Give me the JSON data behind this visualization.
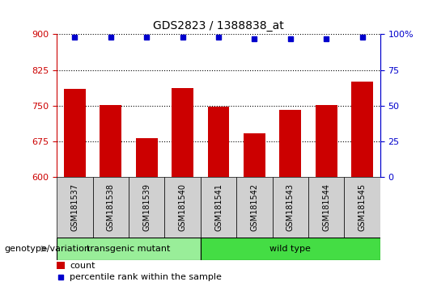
{
  "title": "GDS2823 / 1388838_at",
  "samples": [
    "GSM181537",
    "GSM181538",
    "GSM181539",
    "GSM181540",
    "GSM181541",
    "GSM181542",
    "GSM181543",
    "GSM181544",
    "GSM181545"
  ],
  "bar_values": [
    785,
    752,
    683,
    788,
    748,
    693,
    742,
    751,
    800
  ],
  "percentile_values": [
    98,
    98,
    98,
    98,
    98,
    97,
    97,
    97,
    98
  ],
  "bar_color": "#cc0000",
  "dot_color": "#0000cc",
  "ylim_left": [
    600,
    900
  ],
  "ylim_right": [
    0,
    100
  ],
  "yticks_left": [
    600,
    675,
    750,
    825,
    900
  ],
  "yticks_right": [
    0,
    25,
    50,
    75,
    100
  ],
  "groups": [
    {
      "label": "transgenic mutant",
      "start": 0,
      "end": 4,
      "color": "#99ee99"
    },
    {
      "label": "wild type",
      "start": 4,
      "end": 9,
      "color": "#44dd44"
    }
  ],
  "group_label": "genotype/variation",
  "legend_count_label": "count",
  "legend_pct_label": "percentile rank within the sample",
  "left_axis_color": "#cc0000",
  "right_axis_color": "#0000cc",
  "label_area_color": "#cccccc"
}
